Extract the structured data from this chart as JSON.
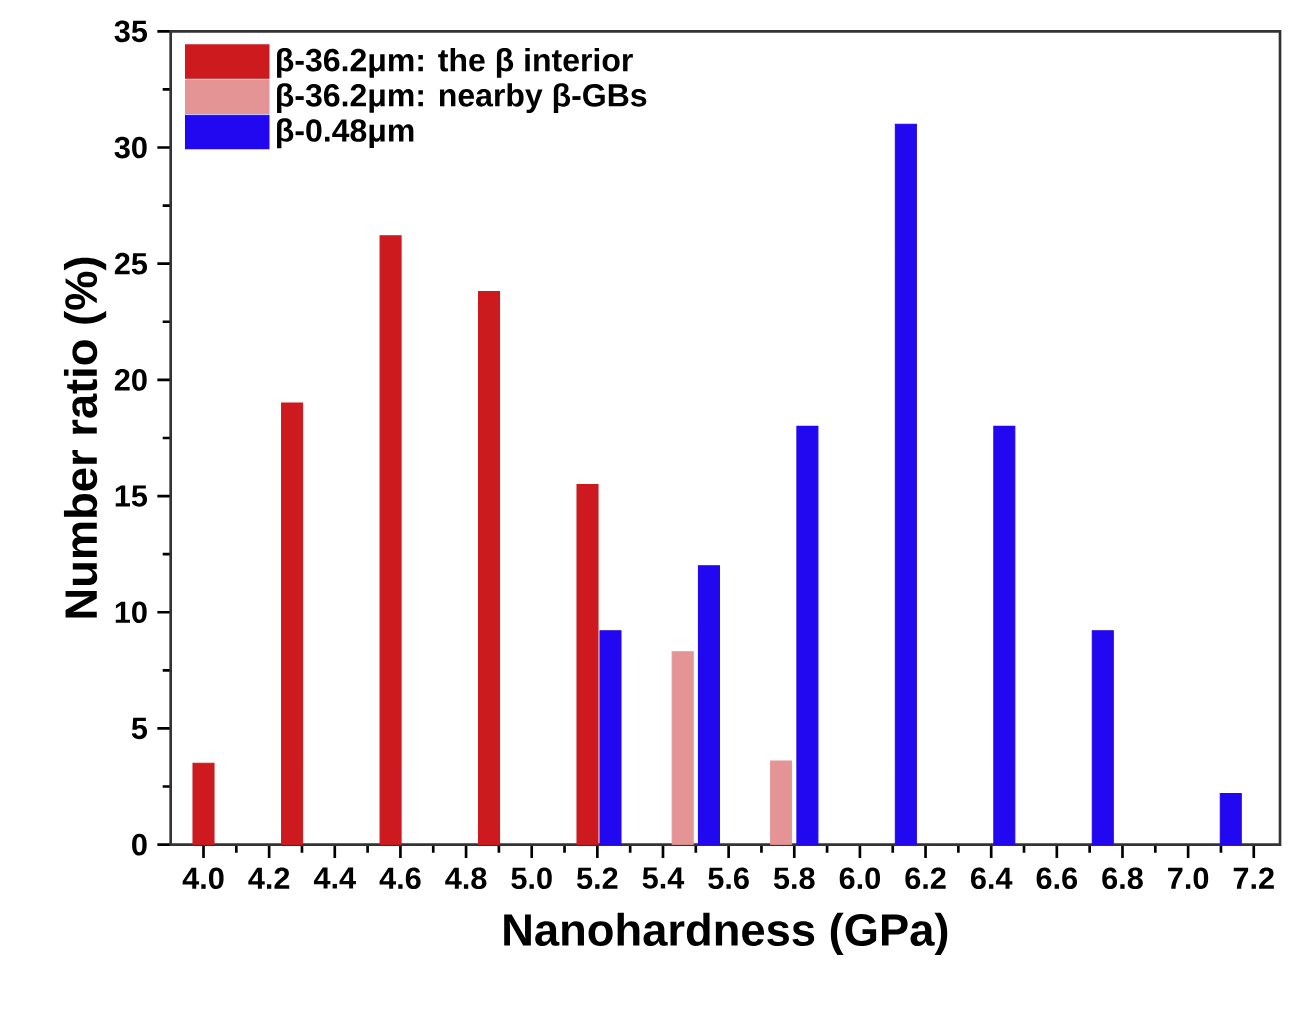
{
  "chart_data": {
    "type": "bar",
    "xlabel": "Nanohardness (GPa)",
    "ylabel": "Number ratio (%)",
    "xlim": [
      3.9,
      7.28
    ],
    "xticks": [
      {
        "value": 4.0,
        "label": "4.0"
      },
      4.2,
      4.4,
      4.6,
      4.8,
      {
        "value": 5.0,
        "label": "5.0"
      },
      5.2,
      5.4,
      5.6,
      5.8,
      {
        "value": 6.0,
        "label": "6.0"
      },
      6.2,
      6.4,
      6.6,
      6.8,
      {
        "value": 7.0,
        "label": "7.0"
      },
      7.2
    ],
    "ylim": [
      0,
      35
    ],
    "yticks": [
      0,
      5,
      10,
      15,
      20,
      25,
      30,
      35
    ],
    "legend": "top left",
    "series": [
      {
        "name": "β-36.2μm: the β interior",
        "color": "#cc1a1f",
        "x": [
          4.0,
          4.27,
          4.57,
          4.87,
          5.17
        ],
        "values": [
          3.5,
          19.0,
          26.2,
          23.8,
          15.5
        ]
      },
      {
        "name": "β-36.2μm: nearby β-GBs",
        "color": "#e49494",
        "x": [
          5.46,
          5.76
        ],
        "values": [
          8.3,
          3.6
        ]
      },
      {
        "name": "β-0.48μm",
        "color": "#2208f0",
        "x": [
          5.24,
          5.54,
          5.84,
          6.14,
          6.44,
          6.74,
          7.13
        ],
        "values": [
          9.2,
          12.0,
          18.0,
          31.0,
          18.0,
          9.2,
          2.2
        ]
      }
    ]
  }
}
